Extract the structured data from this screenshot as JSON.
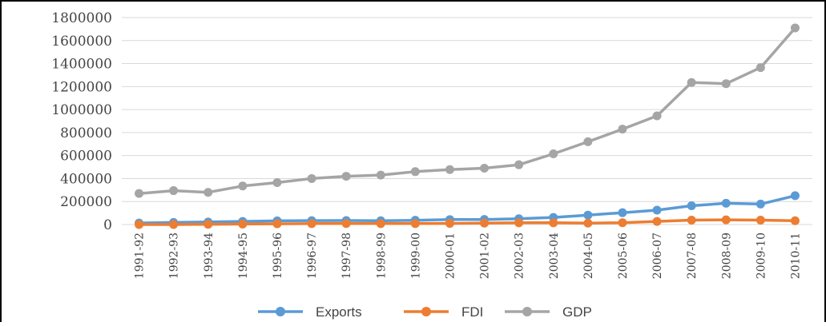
{
  "chart_data": {
    "type": "line",
    "categories": [
      "1991-92",
      "1992-93",
      "1993-94",
      "1994-95",
      "1995-96",
      "1996-97",
      "1997-98",
      "1998-99",
      "1999-00",
      "2000-01",
      "2001-02",
      "2002-03",
      "2003-04",
      "2004-05",
      "2005-06",
      "2006-07",
      "2007-08",
      "2008-09",
      "2009-10",
      "2010-11"
    ],
    "series": [
      {
        "name": "Exports",
        "color": "#5b9bd5",
        "values": [
          13000,
          18000,
          22000,
          27000,
          32000,
          34000,
          35000,
          33000,
          37000,
          43000,
          44000,
          50000,
          62000,
          82000,
          103000,
          125000,
          163000,
          185000,
          178000,
          251000
        ]
      },
      {
        "name": "FDI",
        "color": "#ed7d31",
        "values": [
          0,
          300,
          2000,
          4000,
          6000,
          8000,
          9000,
          8000,
          8000,
          10000,
          12000,
          15000,
          15000,
          12000,
          16000,
          27000,
          38000,
          41000,
          38000,
          33000
        ]
      },
      {
        "name": "GDP",
        "color": "#a5a5a5",
        "values": [
          270000,
          295000,
          280000,
          335000,
          365000,
          400000,
          420000,
          430000,
          460000,
          478000,
          490000,
          520000,
          615000,
          720000,
          830000,
          945000,
          1235000,
          1225000,
          1365000,
          1710000
        ]
      }
    ],
    "yticks": [
      "1800000",
      "1600000",
      "1400000",
      "1200000",
      "1000000",
      "800000",
      "600000",
      "400000",
      "200000",
      "0"
    ],
    "ylim": [
      0,
      1800000
    ],
    "grid": true,
    "legend_position": "bottom"
  }
}
